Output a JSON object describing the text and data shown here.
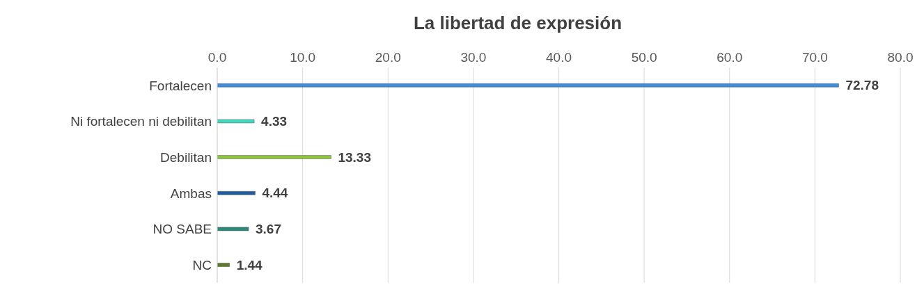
{
  "chart_data": {
    "type": "bar",
    "orientation": "horizontal",
    "title": "La libertad de expresión",
    "categories": [
      "Fortalecen",
      "Ni fortalecen ni debilitan",
      "Debilitan",
      "Ambas",
      "NO SABE",
      "NC"
    ],
    "values": [
      72.78,
      4.33,
      13.33,
      4.44,
      3.67,
      1.44
    ],
    "colors": [
      "#3b8ee0",
      "#3fd9c1",
      "#8cc63f",
      "#1f5e9c",
      "#2a8a7a",
      "#5b7a2a"
    ],
    "xlim": [
      0,
      80
    ],
    "xticks": [
      {
        "value": 0,
        "label": "0.0"
      },
      {
        "value": 10,
        "label": "10.0"
      },
      {
        "value": 20,
        "label": "20.0"
      },
      {
        "value": 30,
        "label": "30.0"
      },
      {
        "value": 40,
        "label": "40.0"
      },
      {
        "value": 50,
        "label": "50.0"
      },
      {
        "value": 60,
        "label": "60.0"
      },
      {
        "value": 70,
        "label": "70.0"
      },
      {
        "value": 80,
        "label": "80.0"
      }
    ],
    "grid": "x",
    "data_labels": true
  }
}
